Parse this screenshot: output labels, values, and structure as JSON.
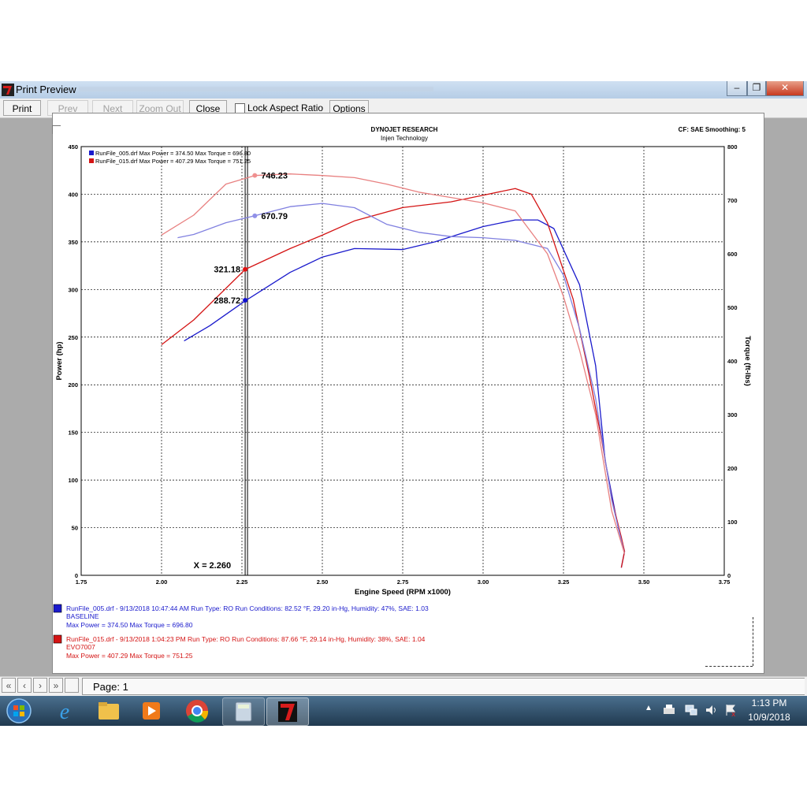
{
  "window": {
    "title": "Print Preview",
    "minimize_glyph": "‒",
    "restore_glyph": "❐",
    "close_glyph": "✕"
  },
  "toolbar": {
    "print": "Print",
    "prev": "Prev",
    "next": "Next",
    "zoom_out": "Zoom Out",
    "close": "Close",
    "lock_aspect": "Lock Aspect Ratio",
    "options": "Options"
  },
  "report": {
    "company": "DYNOJET RESEARCH",
    "subtitle": "Injen Technology",
    "cf": "CF: SAE  Smoothing: 5",
    "legend": [
      "RunFile_005.drf Max Power = 374.50    Max Torque = 696.80",
      "RunFile_015.drf Max Power = 407.29    Max Torque = 751.25"
    ],
    "runs": [
      {
        "line1": "RunFile_005.drf - 9/13/2018 10:47:44 AM  Run Type: RO  Run Conditions: 82.52 °F, 29.20 in-Hg,  Humidity:  47%, SAE: 1.03",
        "line2": "BASELINE",
        "line3": "Max Power = 374.50  Max Torque = 696.80"
      },
      {
        "line1": "RunFile_015.drf - 9/13/2018 1:04:23 PM  Run Type: RO  Run Conditions: 87.66 °F, 29.14 in-Hg,  Humidity:  38%, SAE: 1.04",
        "line2": "EVO7007",
        "line3": "Max Power = 407.29  Max Torque = 751.25"
      }
    ]
  },
  "chart_data": {
    "type": "line",
    "xlabel": "Engine Speed (RPM x1000)",
    "ylabel": "Power (hp)",
    "y2label": "Torque (ft-lbs)",
    "xlim": [
      1.75,
      3.75
    ],
    "ylim": [
      0,
      450
    ],
    "y2lim": [
      0,
      800
    ],
    "x_ticks": [
      "1.75",
      "2.00",
      "2.25",
      "2.50",
      "2.75",
      "3.00",
      "3.25",
      "3.50",
      "3.75"
    ],
    "y_ticks": [
      "0",
      "50",
      "100",
      "150",
      "200",
      "250",
      "300",
      "350",
      "400",
      "450"
    ],
    "y2_ticks": [
      "0",
      "100",
      "200",
      "300",
      "400",
      "500",
      "600",
      "700",
      "800"
    ],
    "grid": true,
    "cursor_x": 2.26,
    "cursor_label": "X = 2.260",
    "colors": {
      "run005": "#1a1acc",
      "run015": "#d41414",
      "run005_torque": "#8080e0",
      "run015_torque": "#e88080"
    },
    "series": [
      {
        "name": "RunFile_005.drf",
        "axis": "power",
        "color": "#1a1acc",
        "x": [
          2.07,
          2.15,
          2.26,
          2.4,
          2.5,
          2.6,
          2.75,
          2.85,
          3.0,
          3.1,
          3.17,
          3.22,
          3.3,
          3.35,
          3.38,
          3.42,
          3.44,
          3.43
        ],
        "y": [
          246,
          262,
          288,
          318,
          334,
          343,
          342,
          350,
          366,
          373,
          373,
          364,
          305,
          220,
          120,
          50,
          25,
          8
        ]
      },
      {
        "name": "RunFile_015.drf",
        "axis": "power",
        "color": "#d41414",
        "x": [
          2.0,
          2.1,
          2.26,
          2.4,
          2.5,
          2.6,
          2.75,
          2.9,
          3.0,
          3.1,
          3.15,
          3.2,
          3.28,
          3.33,
          3.37,
          3.4,
          3.43,
          3.44,
          3.43
        ],
        "y": [
          242,
          268,
          321,
          343,
          357,
          372,
          386,
          392,
          399,
          406,
          400,
          370,
          290,
          210,
          140,
          80,
          40,
          25,
          8
        ]
      },
      {
        "name": "RunFile_005.drf",
        "axis": "torque",
        "color": "#8080e0",
        "x": [
          2.05,
          2.1,
          2.2,
          2.29,
          2.4,
          2.5,
          2.6,
          2.7,
          2.8,
          2.9,
          3.0,
          3.1,
          3.2,
          3.25,
          3.3,
          3.35,
          3.4,
          3.44
        ],
        "y": [
          630,
          636,
          658,
          671,
          688,
          694,
          686,
          655,
          640,
          632,
          630,
          625,
          610,
          560,
          460,
          330,
          140,
          40
        ]
      },
      {
        "name": "RunFile_015.drf",
        "axis": "torque",
        "color": "#e88080",
        "x": [
          2.0,
          2.1,
          2.2,
          2.29,
          2.4,
          2.5,
          2.6,
          2.7,
          2.8,
          2.9,
          3.0,
          3.1,
          3.2,
          3.25,
          3.3,
          3.35,
          3.4,
          3.44
        ],
        "y": [
          635,
          672,
          730,
          746,
          749,
          746,
          742,
          730,
          715,
          705,
          695,
          680,
          600,
          520,
          420,
          300,
          120,
          40
        ]
      }
    ],
    "markers": [
      {
        "x": 2.29,
        "axis": "torque",
        "y": 746.23,
        "label": "746.23",
        "color": "#f09090"
      },
      {
        "x": 2.29,
        "axis": "torque",
        "y": 670.79,
        "label": "670.79",
        "color": "#9090e8"
      },
      {
        "x": 2.26,
        "axis": "power",
        "y": 321.18,
        "label": "321.18",
        "color": "#e01010"
      },
      {
        "x": 2.26,
        "axis": "power",
        "y": 288.72,
        "label": "288.72",
        "color": "#1010d0"
      }
    ]
  },
  "statusbar": {
    "first": "«",
    "prev": "‹",
    "next": "›",
    "last": "»",
    "page": "Page: 1"
  },
  "taskbar": {
    "time": "1:13 PM",
    "date": "10/9/2018",
    "icons": [
      "start-orb-icon",
      "internet-explorer-icon",
      "file-explorer-icon",
      "media-player-icon",
      "chrome-icon",
      "calculator-icon",
      "dynojet-app-icon"
    ]
  }
}
